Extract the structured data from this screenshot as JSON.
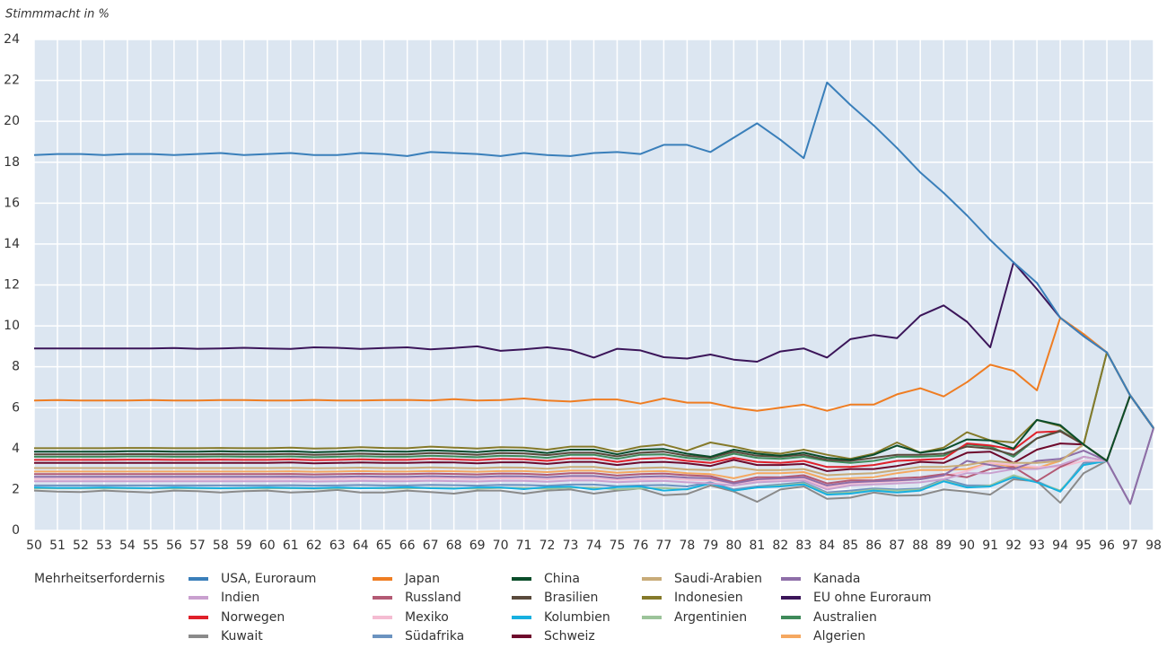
{
  "chart_data": {
    "type": "line",
    "y_axis_label": "Stimmmacht in %",
    "legend_title": "Mehrheitserfordernis",
    "categories": [
      "50",
      "51",
      "52",
      "53",
      "54",
      "55",
      "56",
      "57",
      "58",
      "59",
      "60",
      "61",
      "62",
      "63",
      "64",
      "65",
      "66",
      "67",
      "68",
      "69",
      "70",
      "71",
      "72",
      "73",
      "74",
      "75",
      "76",
      "77",
      "78",
      "79",
      "80",
      "81",
      "82",
      "83",
      "84",
      "85",
      "86",
      "87",
      "88",
      "89",
      "90",
      "91",
      "92",
      "93",
      "94",
      "95",
      "96",
      "97",
      "98"
    ],
    "ylim": [
      0,
      24
    ],
    "yticks": [
      0,
      2,
      4,
      6,
      8,
      10,
      12,
      14,
      16,
      18,
      20,
      22,
      24
    ],
    "grid": true,
    "legend": "bottom",
    "series": [
      {
        "name": "USA, Euroraum",
        "color": "#3a7fba",
        "values": [
          18.35,
          18.4,
          18.4,
          18.35,
          18.4,
          18.4,
          18.35,
          18.4,
          18.45,
          18.35,
          18.4,
          18.45,
          18.35,
          18.35,
          18.45,
          18.4,
          18.3,
          18.5,
          18.45,
          18.4,
          18.3,
          18.45,
          18.35,
          18.3,
          18.45,
          18.5,
          18.4,
          18.85,
          18.85,
          18.5,
          19.2,
          19.9,
          19.1,
          18.2,
          21.9,
          20.8,
          19.8,
          18.7,
          17.5,
          16.5,
          15.4,
          14.2,
          13.1,
          12.1,
          10.4,
          9.5,
          8.7,
          6.6,
          5.0
        ]
      },
      {
        "name": "Japan",
        "color": "#ef7d22",
        "values": [
          6.35,
          6.37,
          6.35,
          6.35,
          6.35,
          6.37,
          6.35,
          6.35,
          6.37,
          6.37,
          6.35,
          6.35,
          6.38,
          6.35,
          6.35,
          6.37,
          6.38,
          6.35,
          6.42,
          6.35,
          6.37,
          6.45,
          6.35,
          6.3,
          6.4,
          6.4,
          6.2,
          6.45,
          6.25,
          6.25,
          6.0,
          5.85,
          6.0,
          6.15,
          5.85,
          6.15,
          6.15,
          6.65,
          6.95,
          6.55,
          7.25,
          8.1,
          7.8,
          6.85,
          10.4,
          9.6,
          8.7,
          6.6,
          5.0
        ]
      },
      {
        "name": "China",
        "color": "#0a4d2a",
        "values": [
          3.85,
          3.85,
          3.85,
          3.85,
          3.87,
          3.87,
          3.85,
          3.85,
          3.87,
          3.85,
          3.85,
          3.87,
          3.82,
          3.85,
          3.9,
          3.86,
          3.85,
          3.92,
          3.88,
          3.83,
          3.92,
          3.9,
          3.78,
          3.95,
          3.95,
          3.72,
          3.95,
          3.98,
          3.75,
          3.6,
          3.95,
          3.75,
          3.65,
          3.8,
          3.55,
          3.45,
          3.7,
          4.15,
          3.8,
          3.95,
          4.45,
          4.4,
          4.0,
          5.4,
          5.15,
          4.2,
          3.4,
          6.6,
          5.0
        ]
      },
      {
        "name": "Saudi-Arabien",
        "color": "#c8ab78",
        "values": [
          3.05,
          3.05,
          3.05,
          3.05,
          3.05,
          3.05,
          3.05,
          3.05,
          3.05,
          3.05,
          3.05,
          3.06,
          3.04,
          3.05,
          3.07,
          3.05,
          3.05,
          3.08,
          3.06,
          3.04,
          3.08,
          3.07,
          3.02,
          3.1,
          3.1,
          2.98,
          3.05,
          3.08,
          2.98,
          2.95,
          3.1,
          2.95,
          2.95,
          3.0,
          2.7,
          2.75,
          2.8,
          2.95,
          3.1,
          3.1,
          3.2,
          3.4,
          3.3,
          3.3,
          3.4,
          4.2,
          3.4,
          6.6,
          5.0
        ]
      },
      {
        "name": "Kanada",
        "color": "#8e6ea8",
        "values": [
          2.62,
          2.62,
          2.62,
          2.62,
          2.62,
          2.62,
          2.62,
          2.62,
          2.62,
          2.62,
          2.62,
          2.63,
          2.61,
          2.62,
          2.64,
          2.62,
          2.62,
          2.65,
          2.63,
          2.61,
          2.65,
          2.64,
          2.6,
          2.66,
          2.66,
          2.56,
          2.62,
          2.65,
          2.58,
          2.55,
          2.3,
          2.5,
          2.55,
          2.6,
          2.2,
          2.35,
          2.4,
          2.45,
          2.5,
          2.7,
          3.4,
          3.2,
          3.0,
          3.4,
          3.5,
          3.9,
          3.4,
          1.3,
          5.0
        ]
      },
      {
        "name": "Indien",
        "color": "#c9a0cf",
        "values": [
          2.4,
          2.4,
          2.4,
          2.4,
          2.4,
          2.4,
          2.4,
          2.4,
          2.4,
          2.4,
          2.4,
          2.41,
          2.39,
          2.4,
          2.42,
          2.4,
          2.4,
          2.43,
          2.41,
          2.39,
          2.43,
          2.42,
          2.38,
          2.44,
          2.44,
          2.36,
          2.4,
          2.42,
          2.35,
          2.3,
          2.2,
          2.35,
          2.4,
          2.45,
          2.0,
          2.2,
          2.25,
          2.3,
          2.35,
          2.5,
          2.8,
          2.8,
          3.0,
          3.0,
          3.2,
          3.6,
          3.4,
          6.6,
          5.0
        ]
      },
      {
        "name": "Russland",
        "color": "#b35a74",
        "values": [
          2.75,
          2.75,
          2.75,
          2.75,
          2.75,
          2.75,
          2.75,
          2.75,
          2.75,
          2.75,
          2.75,
          2.76,
          2.74,
          2.75,
          2.77,
          2.75,
          2.75,
          2.78,
          2.76,
          2.74,
          2.78,
          2.77,
          2.72,
          2.8,
          2.8,
          2.68,
          2.75,
          2.78,
          2.7,
          2.65,
          2.35,
          2.6,
          2.6,
          2.7,
          2.3,
          2.45,
          2.45,
          2.55,
          2.6,
          2.75,
          2.6,
          3.0,
          3.1,
          2.4,
          3.1,
          3.6,
          3.4,
          6.6,
          5.0
        ]
      },
      {
        "name": "Brasilien",
        "color": "#5a4a3c",
        "values": [
          3.72,
          3.72,
          3.72,
          3.72,
          3.73,
          3.73,
          3.72,
          3.72,
          3.73,
          3.72,
          3.72,
          3.74,
          3.7,
          3.72,
          3.75,
          3.72,
          3.72,
          3.78,
          3.75,
          3.7,
          3.78,
          3.76,
          3.68,
          3.8,
          3.8,
          3.62,
          3.8,
          3.85,
          3.65,
          3.55,
          3.85,
          3.65,
          3.6,
          3.7,
          3.45,
          3.4,
          3.55,
          3.7,
          3.7,
          3.75,
          4.1,
          4.0,
          3.7,
          4.5,
          4.85,
          4.2,
          3.4,
          6.6,
          5.0
        ]
      },
      {
        "name": "Indonesien",
        "color": "#857a2a",
        "values": [
          4.02,
          4.02,
          4.02,
          4.02,
          4.03,
          4.03,
          4.02,
          4.02,
          4.03,
          4.02,
          4.02,
          4.05,
          4.0,
          4.02,
          4.07,
          4.03,
          4.02,
          4.1,
          4.05,
          4.0,
          4.07,
          4.05,
          3.95,
          4.1,
          4.1,
          3.85,
          4.1,
          4.2,
          3.9,
          4.3,
          4.1,
          3.85,
          3.75,
          3.95,
          3.7,
          3.5,
          3.75,
          4.3,
          3.8,
          4.05,
          4.8,
          4.4,
          4.3,
          5.4,
          5.1,
          4.2,
          8.7,
          6.6,
          5.0
        ]
      },
      {
        "name": "EU ohne Euroraum",
        "color": "#3b1559",
        "values": [
          8.9,
          8.9,
          8.9,
          8.9,
          8.9,
          8.9,
          8.92,
          8.88,
          8.9,
          8.93,
          8.9,
          8.87,
          8.95,
          8.93,
          8.87,
          8.92,
          8.95,
          8.85,
          8.92,
          9.0,
          8.78,
          8.85,
          8.95,
          8.82,
          8.45,
          8.88,
          8.8,
          8.47,
          8.4,
          8.6,
          8.35,
          8.25,
          8.75,
          8.9,
          8.45,
          9.35,
          9.55,
          9.4,
          10.5,
          11.0,
          10.2,
          8.95,
          13.1,
          11.8,
          10.4,
          9.5,
          8.7,
          6.6,
          5.0
        ]
      },
      {
        "name": "Norwegen",
        "color": "#e0202a",
        "values": [
          3.45,
          3.45,
          3.45,
          3.45,
          3.46,
          3.46,
          3.45,
          3.45,
          3.46,
          3.45,
          3.45,
          3.47,
          3.43,
          3.45,
          3.48,
          3.45,
          3.45,
          3.5,
          3.47,
          3.43,
          3.5,
          3.48,
          3.4,
          3.52,
          3.52,
          3.35,
          3.5,
          3.55,
          3.4,
          3.3,
          3.55,
          3.35,
          3.3,
          3.4,
          3.1,
          3.1,
          3.2,
          3.4,
          3.45,
          3.5,
          4.25,
          4.15,
          3.95,
          4.8,
          4.85,
          4.2,
          3.4,
          6.6,
          5.0
        ]
      },
      {
        "name": "Mexiko",
        "color": "#f5bcd2",
        "values": [
          2.52,
          2.52,
          2.52,
          2.52,
          2.52,
          2.52,
          2.52,
          2.52,
          2.52,
          2.52,
          2.52,
          2.53,
          2.51,
          2.52,
          2.54,
          2.52,
          2.52,
          2.55,
          2.53,
          2.51,
          2.55,
          2.54,
          2.5,
          2.56,
          2.56,
          2.48,
          2.5,
          2.55,
          2.48,
          2.45,
          2.3,
          2.45,
          2.5,
          2.55,
          2.1,
          2.3,
          2.35,
          2.4,
          2.5,
          2.65,
          2.9,
          3.3,
          3.2,
          3.1,
          3.1,
          3.4,
          3.4,
          6.6,
          5.0
        ]
      },
      {
        "name": "Kolumbien",
        "color": "#17b0e0",
        "values": [
          2.1,
          2.08,
          2.08,
          2.1,
          2.08,
          2.06,
          2.1,
          2.08,
          2.06,
          2.08,
          2.1,
          2.08,
          2.06,
          2.1,
          2.06,
          2.08,
          2.12,
          2.06,
          2.04,
          2.1,
          2.1,
          2.02,
          2.12,
          2.14,
          2.0,
          2.12,
          2.15,
          1.95,
          2.02,
          2.3,
          1.95,
          2.1,
          2.15,
          2.25,
          1.75,
          1.8,
          1.95,
          1.85,
          1.95,
          2.4,
          2.1,
          2.15,
          2.6,
          2.35,
          1.9,
          3.2,
          3.4,
          6.6,
          5.0
        ]
      },
      {
        "name": "Argentinien",
        "color": "#9cc49a",
        "values": [
          2.05,
          2.05,
          2.05,
          2.05,
          2.05,
          2.05,
          2.05,
          2.05,
          2.05,
          2.05,
          2.05,
          2.06,
          2.04,
          2.05,
          2.07,
          2.05,
          2.05,
          2.08,
          2.06,
          2.04,
          2.08,
          2.07,
          2.03,
          2.09,
          2.09,
          2.01,
          2.05,
          2.07,
          2.0,
          2.3,
          1.95,
          2.1,
          2.2,
          2.3,
          1.8,
          1.85,
          2.0,
          1.95,
          2.0,
          2.45,
          2.1,
          2.2,
          2.7,
          2.35,
          1.95,
          3.2,
          3.4,
          6.6,
          5.0
        ]
      },
      {
        "name": "Australien",
        "color": "#3f8a5a",
        "values": [
          3.6,
          3.6,
          3.6,
          3.6,
          3.62,
          3.62,
          3.6,
          3.6,
          3.62,
          3.6,
          3.6,
          3.62,
          3.58,
          3.6,
          3.63,
          3.6,
          3.6,
          3.65,
          3.62,
          3.58,
          3.65,
          3.63,
          3.55,
          3.7,
          3.7,
          3.5,
          3.7,
          3.72,
          3.55,
          3.45,
          3.75,
          3.55,
          3.5,
          3.6,
          3.4,
          3.3,
          3.4,
          3.6,
          3.6,
          3.65,
          4.2,
          4.1,
          3.6,
          4.5,
          4.9,
          4.2,
          8.7,
          6.6,
          5.0
        ]
      },
      {
        "name": "Kuwait",
        "color": "#8a8a8a",
        "values": [
          1.95,
          1.9,
          1.88,
          1.95,
          1.9,
          1.85,
          1.95,
          1.92,
          1.85,
          1.92,
          1.95,
          1.85,
          1.9,
          1.98,
          1.85,
          1.85,
          1.95,
          1.88,
          1.8,
          1.95,
          1.95,
          1.8,
          1.95,
          2.0,
          1.8,
          1.95,
          2.05,
          1.72,
          1.78,
          2.2,
          1.9,
          1.4,
          2.0,
          2.15,
          1.55,
          1.6,
          1.85,
          1.7,
          1.72,
          2.0,
          1.9,
          1.75,
          2.5,
          2.4,
          1.35,
          2.8,
          3.4,
          1.3,
          5.0
        ]
      },
      {
        "name": "Südafrika",
        "color": "#6b93c0",
        "values": [
          2.2,
          2.2,
          2.2,
          2.2,
          2.2,
          2.2,
          2.2,
          2.2,
          2.2,
          2.2,
          2.2,
          2.21,
          2.19,
          2.2,
          2.22,
          2.2,
          2.2,
          2.23,
          2.21,
          2.19,
          2.23,
          2.22,
          2.18,
          2.24,
          2.24,
          2.16,
          2.2,
          2.22,
          2.15,
          2.35,
          2.0,
          2.15,
          2.25,
          2.35,
          1.85,
          1.95,
          2.05,
          2.0,
          2.05,
          2.5,
          2.2,
          2.2,
          2.6,
          2.4,
          1.9,
          3.3,
          3.4,
          6.6,
          5.0
        ]
      },
      {
        "name": "Schweiz",
        "color": "#6e0a2c",
        "values": [
          3.3,
          3.3,
          3.3,
          3.3,
          3.3,
          3.3,
          3.3,
          3.3,
          3.3,
          3.3,
          3.3,
          3.32,
          3.28,
          3.3,
          3.32,
          3.3,
          3.3,
          3.33,
          3.32,
          3.28,
          3.33,
          3.33,
          3.25,
          3.35,
          3.35,
          3.2,
          3.32,
          3.35,
          3.28,
          3.15,
          3.45,
          3.2,
          3.2,
          3.25,
          2.9,
          3.0,
          3.0,
          3.15,
          3.35,
          3.3,
          3.8,
          3.85,
          3.3,
          3.95,
          4.25,
          4.2,
          3.4,
          6.6,
          5.0
        ]
      },
      {
        "name": "Algerien",
        "color": "#f5a860",
        "values": [
          2.88,
          2.88,
          2.88,
          2.88,
          2.88,
          2.88,
          2.88,
          2.88,
          2.88,
          2.88,
          2.88,
          2.89,
          2.87,
          2.88,
          2.9,
          2.88,
          2.88,
          2.9,
          2.89,
          2.87,
          2.9,
          2.9,
          2.85,
          2.92,
          2.92,
          2.82,
          2.88,
          2.9,
          2.8,
          2.75,
          2.55,
          2.8,
          2.8,
          2.85,
          2.5,
          2.55,
          2.6,
          2.8,
          2.95,
          2.95,
          3.0,
          3.3,
          3.1,
          3.05,
          3.4,
          4.2,
          3.4,
          6.6,
          5.0
        ]
      }
    ]
  }
}
